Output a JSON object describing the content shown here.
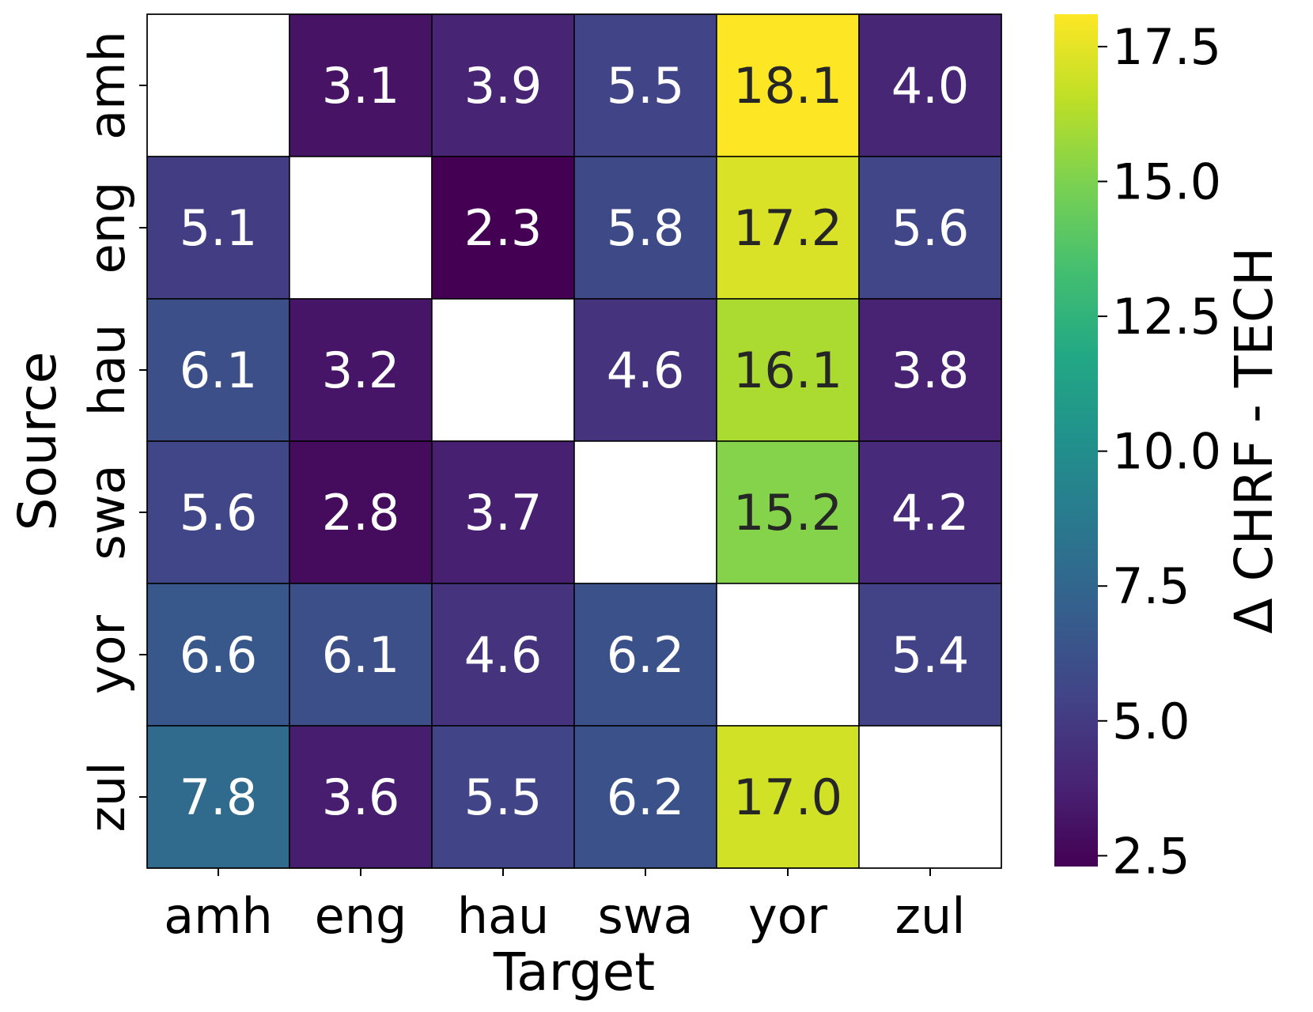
{
  "chart_data": {
    "type": "heatmap",
    "xlabel": "Target",
    "ylabel": "Source",
    "colorbar_label": "Δ CHRF - TECH",
    "x_categories": [
      "amh",
      "eng",
      "hau",
      "swa",
      "yor",
      "zul"
    ],
    "y_categories": [
      "amh",
      "eng",
      "hau",
      "swa",
      "yor",
      "zul"
    ],
    "values": [
      [
        null,
        3.1,
        3.9,
        5.5,
        18.1,
        4.0
      ],
      [
        5.1,
        null,
        2.3,
        5.8,
        17.2,
        5.6
      ],
      [
        6.1,
        3.2,
        null,
        4.6,
        16.1,
        3.8
      ],
      [
        5.6,
        2.8,
        3.7,
        null,
        15.2,
        4.2
      ],
      [
        6.6,
        6.1,
        4.6,
        6.2,
        null,
        5.4
      ],
      [
        7.8,
        3.6,
        5.5,
        6.2,
        17.0,
        null
      ]
    ],
    "colormap": "viridis",
    "color_range": [
      2.3,
      18.1
    ],
    "colorbar_ticks": [
      "2.5",
      "5.0",
      "7.5",
      "10.0",
      "12.5",
      "15.0",
      "17.5"
    ],
    "diagonal_color": "#ffffff",
    "annotation_colors": {
      "light": "#ffffff",
      "dark": "#262626"
    }
  }
}
